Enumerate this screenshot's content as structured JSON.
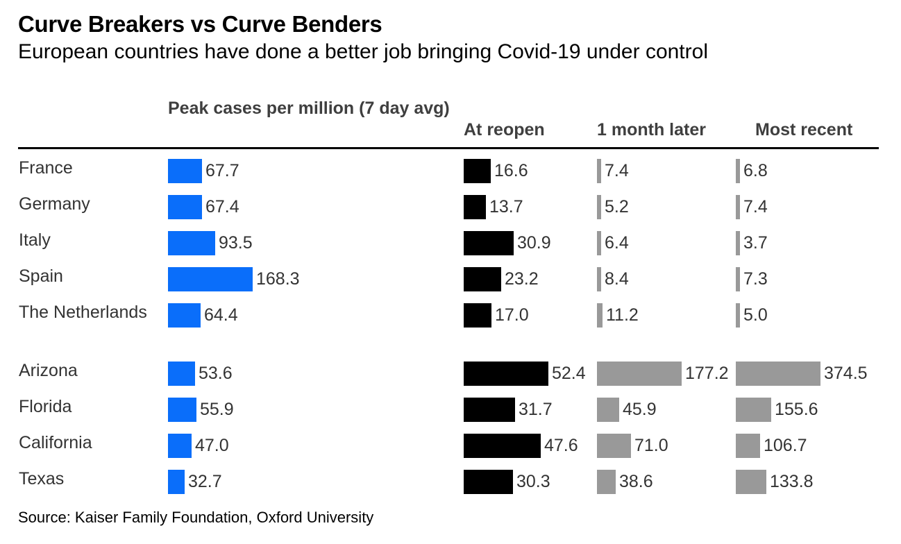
{
  "chart_data": {
    "type": "table",
    "title": "Curve Breakers vs Curve Benders",
    "subtitle": "European countries have done a better job bringing Covid-19 under control",
    "source": "Source: Kaiser Family Foundation, Oxford University",
    "columns": [
      {
        "key": "peak",
        "label": "Peak cases per million (7 day avg)",
        "color": "#0a6efa",
        "max": 168.3
      },
      {
        "key": "reopen",
        "label": "At reopen",
        "color": "#000000",
        "max": 52.4
      },
      {
        "key": "month",
        "label": "1 month later",
        "color": "#999999",
        "max": 177.2
      },
      {
        "key": "recent",
        "label": "Most recent",
        "color": "#999999",
        "max": 374.5
      }
    ],
    "rows": [
      {
        "name": "France",
        "peak": 67.7,
        "reopen": 16.6,
        "month": 7.4,
        "recent": 6.8,
        "labels": {
          "peak": "67.7",
          "reopen": "16.6",
          "month": "7.4",
          "recent": "6.8"
        }
      },
      {
        "name": "Germany",
        "peak": 67.4,
        "reopen": 13.7,
        "month": 5.2,
        "recent": 7.4,
        "labels": {
          "peak": "67.4",
          "reopen": "13.7",
          "month": "5.2",
          "recent": "7.4"
        }
      },
      {
        "name": "Italy",
        "peak": 93.5,
        "reopen": 30.9,
        "month": 6.4,
        "recent": 3.7,
        "labels": {
          "peak": "93.5",
          "reopen": "30.9",
          "month": "6.4",
          "recent": "3.7"
        }
      },
      {
        "name": "Spain",
        "peak": 168.3,
        "reopen": 23.2,
        "month": 8.4,
        "recent": 7.3,
        "labels": {
          "peak": "168.3",
          "reopen": "23.2",
          "month": "8.4",
          "recent": "7.3"
        }
      },
      {
        "name": "The Netherlands",
        "peak": 64.4,
        "reopen": 17.0,
        "month": 11.2,
        "recent": 5.0,
        "labels": {
          "peak": "64.4",
          "reopen": "17.0",
          "month": "11.2",
          "recent": "5.0"
        }
      },
      {
        "name": "Arizona",
        "peak": 53.6,
        "reopen": 52.4,
        "month": 177.2,
        "recent": 374.5,
        "labels": {
          "peak": "53.6",
          "reopen": "52.4",
          "month": "177.2",
          "recent": "374.5"
        }
      },
      {
        "name": "Florida",
        "peak": 55.9,
        "reopen": 31.7,
        "month": 45.9,
        "recent": 155.6,
        "labels": {
          "peak": "55.9",
          "reopen": "31.7",
          "month": "45.9",
          "recent": "155.6"
        }
      },
      {
        "name": "California",
        "peak": 47.0,
        "reopen": 47.6,
        "month": 71.0,
        "recent": 106.7,
        "labels": {
          "peak": "47.0",
          "reopen": "47.6",
          "month": "71.0",
          "recent": "106.7"
        }
      },
      {
        "name": "Texas",
        "peak": 32.7,
        "reopen": 30.3,
        "month": 38.6,
        "recent": 133.8,
        "labels": {
          "peak": "32.7",
          "reopen": "30.3",
          "month": "38.6",
          "recent": "133.8"
        }
      }
    ]
  }
}
